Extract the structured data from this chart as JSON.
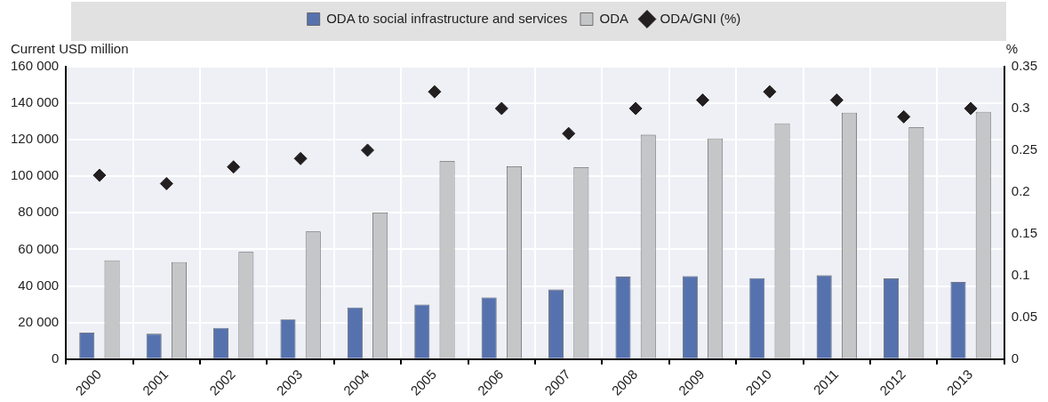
{
  "chart_data": {
    "type": "bar",
    "ylabel": "Current USD million",
    "y2label": "%",
    "legend": "top",
    "grid": true,
    "marker": "diamond",
    "categories": [
      "2000",
      "2001",
      "2002",
      "2003",
      "2004",
      "2005",
      "2006",
      "2007",
      "2008",
      "2009",
      "2010",
      "2011",
      "2012",
      "2013"
    ],
    "series": [
      {
        "name": "ODA to social infrastructure and services",
        "color": "#5672ae",
        "values": [
          14500,
          13800,
          17000,
          21600,
          28200,
          29800,
          33700,
          38000,
          45200,
          45400,
          44300,
          45800,
          44200,
          42200
        ]
      },
      {
        "name": "ODA",
        "color": "#c5c6c8",
        "values": [
          54000,
          53000,
          58600,
          69800,
          80200,
          108400,
          105500,
          105000,
          122700,
          120700,
          129000,
          134800,
          126900,
          135300
        ]
      },
      {
        "name": "ODA/GNI (%)",
        "type": "scatter",
        "axis": "y2",
        "color": "#231f20",
        "values": [
          0.22,
          0.21,
          0.23,
          0.24,
          0.25,
          0.32,
          0.3,
          0.27,
          0.3,
          0.31,
          0.32,
          0.31,
          0.29,
          0.3
        ]
      }
    ],
    "ylim": [
      0,
      160000
    ],
    "yticks": [
      {
        "value": 0,
        "label": "0"
      },
      {
        "value": 20000,
        "label": "20 000"
      },
      {
        "value": 40000,
        "label": "40 000"
      },
      {
        "value": 60000,
        "label": "60 000"
      },
      {
        "value": 80000,
        "label": "80 000"
      },
      {
        "value": 100000,
        "label": "100 000"
      },
      {
        "value": 120000,
        "label": "120 000"
      },
      {
        "value": 140000,
        "label": "140 000"
      },
      {
        "value": 160000,
        "label": "160 000"
      }
    ],
    "y2lim": [
      0,
      0.35
    ],
    "y2ticks": [
      0,
      0.05,
      0.1,
      0.15,
      0.2,
      0.25,
      0.3,
      0.35
    ]
  }
}
